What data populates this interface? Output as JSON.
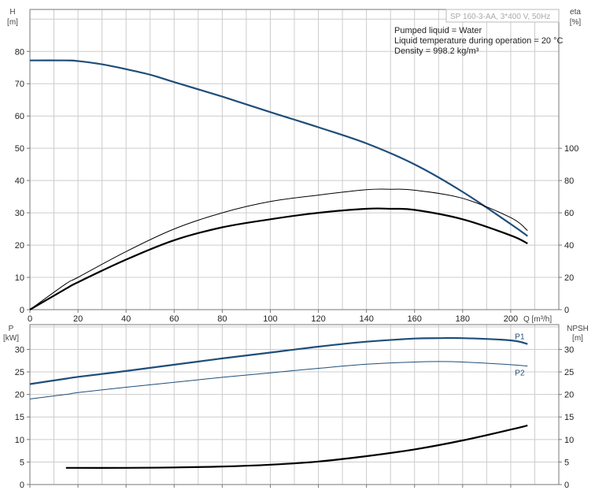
{
  "header": {
    "model": "SP 160-3-AA, 3*400 V, 50Hz",
    "info": [
      "Pumped liquid = Water",
      "Liquid temperature during operation = 20 °C",
      "Density = 998.2 kg/m³"
    ]
  },
  "colors": {
    "head": "#1f4e79",
    "power": "#1f4e79",
    "efficiency": "#000000",
    "npsh": "#000000",
    "grid": "#cccccc"
  },
  "chart_data": [
    {
      "type": "line",
      "x_label": "Q [m³/h]",
      "xlim": [
        0,
        220
      ],
      "x_ticks": [
        0,
        20,
        40,
        60,
        80,
        100,
        120,
        140,
        160,
        180,
        200
      ],
      "left_axis": {
        "label_line1": "H",
        "label_line2": "[m]",
        "ylim": [
          0,
          93
        ],
        "ticks": [
          0,
          10,
          20,
          30,
          40,
          50,
          60,
          70,
          80
        ]
      },
      "right_axis": {
        "label_line1": "eta",
        "label_line2": "[%]",
        "ylim": [
          0,
          186
        ],
        "ticks": [
          0,
          20,
          40,
          60,
          80,
          100
        ]
      },
      "grid": true,
      "series": [
        {
          "axis": "left",
          "style": "head",
          "x": [
            0,
            15,
            20,
            30,
            40,
            50,
            60,
            80,
            100,
            120,
            140,
            160,
            180,
            200,
            207
          ],
          "y": [
            77.2,
            77.2,
            77.0,
            76.0,
            74.5,
            72.8,
            70.5,
            66.0,
            61.2,
            56.5,
            51.5,
            45.0,
            36.5,
            26.5,
            22.8
          ]
        },
        {
          "axis": "right",
          "style": "efficiency-bold",
          "x": [
            0,
            15,
            20,
            40,
            60,
            80,
            100,
            120,
            140,
            150,
            160,
            180,
            200,
            207
          ],
          "y": [
            0,
            13,
            17,
            31,
            43,
            51,
            56,
            60,
            62.5,
            62.5,
            61.8,
            56,
            46,
            41
          ]
        },
        {
          "axis": "right",
          "style": "efficiency-thin",
          "x": [
            0,
            15,
            20,
            40,
            60,
            80,
            100,
            120,
            140,
            150,
            160,
            180,
            200,
            207
          ],
          "y": [
            0,
            16,
            20,
            36,
            50,
            60,
            67,
            71,
            74.3,
            74.6,
            74,
            69,
            57,
            49
          ]
        }
      ]
    },
    {
      "type": "line",
      "xlim": [
        0,
        220
      ],
      "x_ticks": [
        0,
        20,
        40,
        60,
        80,
        100,
        120,
        140,
        160,
        180,
        200
      ],
      "left_axis": {
        "label_line1": "P",
        "label_line2": "[kW]",
        "ylim": [
          0,
          35.5
        ],
        "ticks": [
          0,
          5,
          10,
          15,
          20,
          25,
          30
        ]
      },
      "right_axis": {
        "label_line1": "NPSH",
        "label_line2": "[m]",
        "ylim": [
          0,
          35.5
        ],
        "ticks": [
          0,
          5,
          10,
          15,
          20,
          25,
          30
        ]
      },
      "grid": true,
      "series": [
        {
          "name": "P1",
          "axis": "left",
          "style": "power-bold",
          "x": [
            0,
            15,
            20,
            40,
            60,
            80,
            100,
            120,
            140,
            160,
            170,
            180,
            200,
            207
          ],
          "y": [
            22.3,
            23.5,
            23.9,
            25.2,
            26.6,
            28.0,
            29.3,
            30.6,
            31.7,
            32.4,
            32.5,
            32.5,
            32.0,
            31.2
          ]
        },
        {
          "name": "P2",
          "axis": "left",
          "style": "power-thin",
          "x": [
            0,
            15,
            20,
            40,
            60,
            80,
            100,
            120,
            140,
            160,
            170,
            180,
            200,
            207
          ],
          "y": [
            19.0,
            20.0,
            20.4,
            21.6,
            22.7,
            23.8,
            24.8,
            25.8,
            26.7,
            27.2,
            27.3,
            27.2,
            26.6,
            26.3
          ]
        },
        {
          "axis": "right",
          "style": "npsh",
          "x": [
            15,
            40,
            60,
            80,
            100,
            120,
            140,
            160,
            180,
            200,
            207
          ],
          "y": [
            3.7,
            3.7,
            3.8,
            4.0,
            4.4,
            5.1,
            6.3,
            7.8,
            9.8,
            12.2,
            13.1
          ]
        }
      ]
    }
  ]
}
